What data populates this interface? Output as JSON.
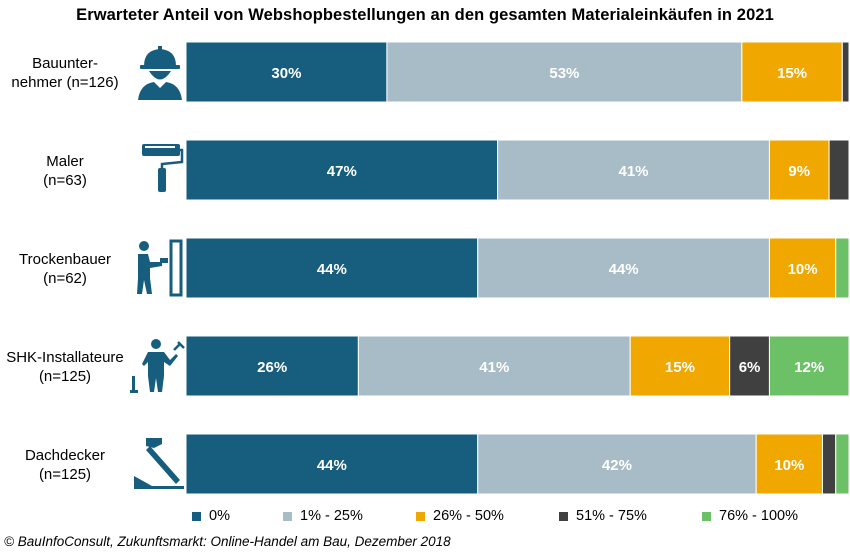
{
  "colors": {
    "navy": "#175e7e",
    "light": "#a8bcc8",
    "orange": "#f0a800",
    "dark": "#404040",
    "green": "#6cc066"
  },
  "chart_data": {
    "type": "bar",
    "orientation": "horizontal",
    "stacked": true,
    "percent": true,
    "title": "Erwarteter Anteil von Webshopbestellungen an den gesamten Materialeinkäufen in 2021",
    "categories": [
      "Bauunter-\nnehmer (n=126)",
      "Maler\n(n=63)",
      "Trockenbauer\n(n=62)",
      "SHK-Installateure\n(n=125)",
      "Dachdecker\n(n=125)"
    ],
    "series": [
      {
        "name": "0%",
        "color": "#175e7e",
        "values": [
          30,
          47,
          44,
          26,
          44
        ]
      },
      {
        "name": "1% - 25%",
        "color": "#a8bcc8",
        "values": [
          53,
          41,
          44,
          41,
          42
        ]
      },
      {
        "name": "26% - 50%",
        "color": "#f0a800",
        "values": [
          15,
          9,
          10,
          15,
          10
        ]
      },
      {
        "name": "51% - 75%",
        "color": "#404040",
        "values": [
          1,
          3,
          0,
          6,
          2
        ]
      },
      {
        "name": "76% - 100%",
        "color": "#6cc066",
        "values": [
          0,
          0,
          2,
          12,
          2
        ]
      }
    ],
    "labeled_threshold": 5,
    "legend_position": "bottom",
    "grid": false
  },
  "categories_display": [
    {
      "line1": "Bauunter-",
      "line2": "nehmer (n=126)",
      "icon": "construction-worker-icon"
    },
    {
      "line1": "Maler",
      "line2": "(n=63)",
      "icon": "paint-roller-icon"
    },
    {
      "line1": "Trockenbauer",
      "line2": "(n=62)",
      "icon": "drywall-worker-icon"
    },
    {
      "line1": "SHK-Installateure",
      "line2": "(n=125)",
      "icon": "plumber-icon"
    },
    {
      "line1": "Dachdecker",
      "line2": "(n=125)",
      "icon": "roofing-hammer-icon"
    }
  ],
  "source": "© BauInfoConsult, Zukunftsmarkt: Online-Handel am Bau, Dezember 2018"
}
